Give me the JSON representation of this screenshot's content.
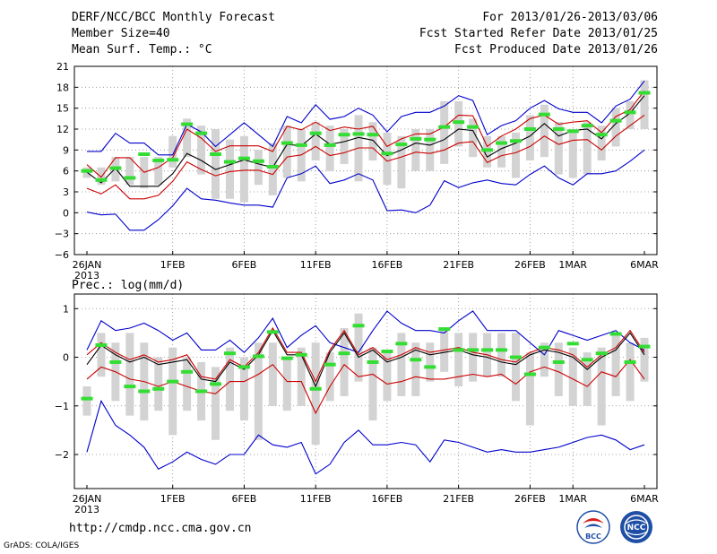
{
  "header": {
    "title": "DERF/NCC/BCC Monthly Forecast",
    "member_size": "Member Size=40",
    "variable": "Mean Surf. Temp.: °C",
    "period": "For 2013/01/26-2013/03/06",
    "start_date": "Fcst Started Refer Date 2013/01/25",
    "produced_date": "Fcst Produced Date 2013/01/26"
  },
  "footer": {
    "url": "http://cmdp.ncc.cma.gov.cn",
    "credit": "GrADS: COLA/IGES",
    "logo_bcc": "BCC",
    "logo_ncc": "NCC"
  },
  "colors": {
    "envelope": "#0000cc",
    "spread": "#cc0000",
    "mean": "#000000",
    "median": "#33dd33",
    "box": "#d3d3d3"
  },
  "chart_data": [
    {
      "type": "line",
      "title": "Mean Surf. Temp.: °C",
      "days": 40,
      "ylim": [
        -6,
        21
      ],
      "yticks": [
        -6,
        -3,
        0,
        3,
        6,
        9,
        12,
        15,
        18,
        21
      ],
      "xtick_labels": [
        {
          "day": 0,
          "label": "26JAN",
          "sub": "2013"
        },
        {
          "day": 6,
          "label": "1FEB"
        },
        {
          "day": 11,
          "label": "6FEB"
        },
        {
          "day": 16,
          "label": "11FEB"
        },
        {
          "day": 21,
          "label": "16FEB"
        },
        {
          "day": 26,
          "label": "21FEB"
        },
        {
          "day": 31,
          "label": "26FEB"
        },
        {
          "day": 34,
          "label": "1MAR"
        },
        {
          "day": 39,
          "label": "6MAR"
        }
      ],
      "series": [
        {
          "name": "max",
          "values": [
            8.8,
            8.8,
            11.4,
            10.0,
            10.0,
            8.3,
            8.3,
            12.7,
            11.6,
            9.5,
            11.2,
            12.9,
            11.2,
            9.5,
            13.8,
            12.9,
            15.5,
            13.4,
            13.8,
            15.0,
            14.0,
            11.6,
            13.8,
            14.4,
            14.4,
            15.3,
            16.8,
            16.1,
            11.2,
            12.5,
            13.2,
            15.0,
            16.1,
            14.9,
            14.4,
            14.4,
            12.9,
            15.3,
            16.3,
            18.9
          ]
        },
        {
          "name": "upper",
          "values": [
            6.9,
            5.1,
            7.9,
            7.9,
            5.8,
            6.5,
            7.9,
            12.0,
            10.7,
            8.8,
            9.6,
            9.6,
            9.6,
            8.8,
            12.4,
            11.9,
            13.0,
            11.8,
            12.3,
            12.0,
            12.4,
            9.5,
            10.6,
            11.3,
            11.3,
            12.3,
            14.0,
            13.9,
            9.5,
            11.0,
            12.0,
            13.5,
            14.0,
            12.7,
            13.0,
            13.2,
            11.5,
            13.8,
            14.8,
            17.5
          ]
        },
        {
          "name": "mean",
          "values": [
            5.8,
            4.3,
            6.4,
            3.8,
            3.8,
            3.8,
            5.6,
            8.5,
            7.5,
            6.2,
            6.9,
            7.6,
            7.0,
            6.5,
            9.8,
            9.6,
            11.3,
            9.8,
            10.2,
            10.8,
            10.4,
            8.2,
            9.0,
            10.0,
            9.7,
            10.5,
            12.0,
            11.8,
            8.0,
            9.2,
            10.0,
            11.0,
            12.8,
            11.0,
            11.8,
            12.0,
            10.6,
            12.8,
            14.3,
            16.8
          ]
        },
        {
          "name": "lower",
          "values": [
            3.5,
            2.7,
            4.0,
            2.0,
            2.0,
            2.5,
            4.5,
            7.3,
            6.2,
            5.3,
            5.9,
            6.1,
            6.1,
            5.5,
            8.0,
            8.3,
            9.5,
            8.2,
            8.6,
            9.3,
            9.3,
            7.4,
            8.0,
            8.7,
            8.5,
            9.0,
            10.0,
            10.2,
            7.2,
            8.2,
            8.6,
            9.5,
            11.0,
            9.8,
            10.4,
            10.5,
            9.0,
            11.0,
            12.5,
            14.0
          ]
        },
        {
          "name": "min",
          "values": [
            0.1,
            -0.3,
            -0.2,
            -2.5,
            -2.5,
            -1.0,
            1.0,
            3.5,
            2.0,
            1.8,
            1.4,
            1.1,
            1.1,
            0.8,
            5.0,
            5.6,
            6.7,
            4.2,
            4.7,
            5.6,
            4.7,
            0.3,
            0.4,
            0.0,
            1.1,
            4.6,
            3.6,
            4.3,
            4.7,
            4.2,
            4.0,
            5.5,
            6.7,
            5.0,
            4.0,
            5.6,
            5.6,
            6.0,
            7.4,
            9.0
          ]
        },
        {
          "name": "median",
          "values": [
            6.0,
            4.7,
            6.4,
            5.0,
            8.4,
            7.5,
            7.6,
            12.7,
            11.4,
            8.4,
            7.3,
            7.8,
            7.4,
            6.6,
            10.0,
            9.7,
            11.4,
            9.7,
            11.2,
            11.3,
            11.2,
            8.5,
            9.8,
            10.6,
            10.5,
            12.3,
            13.0,
            12.3,
            9.0,
            10.0,
            10.3,
            12.0,
            14.1,
            12.0,
            11.7,
            12.5,
            11.2,
            13.2,
            14.4,
            17.2
          ]
        },
        {
          "name": "box_top",
          "values": [
            6.5,
            6.5,
            8.0,
            8.0,
            8.0,
            8.0,
            11.0,
            13.5,
            12.5,
            12.0,
            10.5,
            11.0,
            9.0,
            10.0,
            12.5,
            12.0,
            13.0,
            12.5,
            12.0,
            14.0,
            13.0,
            11.5,
            11.0,
            12.0,
            12.0,
            16.0,
            16.0,
            13.5,
            11.0,
            11.0,
            11.5,
            14.0,
            15.5,
            13.0,
            12.0,
            13.0,
            12.5,
            15.0,
            16.0,
            19.0
          ]
        },
        {
          "name": "box_bottom",
          "values": [
            5.0,
            4.0,
            4.5,
            4.0,
            3.5,
            4.0,
            6.5,
            8.0,
            5.5,
            2.0,
            2.0,
            1.5,
            4.0,
            2.5,
            5.0,
            4.5,
            7.5,
            6.0,
            7.0,
            4.5,
            7.5,
            4.0,
            3.5,
            6.0,
            6.0,
            7.0,
            9.5,
            8.0,
            6.5,
            6.5,
            5.0,
            7.5,
            8.0,
            5.5,
            5.0,
            5.5,
            7.5,
            9.5,
            12.0,
            12.0
          ]
        }
      ]
    },
    {
      "type": "line",
      "title": "Prec.: log(mm/d)",
      "days": 40,
      "ylim": [
        -2.7,
        1.3
      ],
      "yticks": [
        -2,
        -1,
        0,
        1
      ],
      "xtick_labels": [
        {
          "day": 0,
          "label": "26JAN",
          "sub": "2013"
        },
        {
          "day": 6,
          "label": "1FEB"
        },
        {
          "day": 11,
          "label": "6FEB"
        },
        {
          "day": 16,
          "label": "11FEB"
        },
        {
          "day": 21,
          "label": "16FEB"
        },
        {
          "day": 26,
          "label": "21FEB"
        },
        {
          "day": 31,
          "label": "26FEB"
        },
        {
          "day": 34,
          "label": "1MAR"
        },
        {
          "day": 39,
          "label": "6MAR"
        }
      ],
      "series": [
        {
          "name": "max",
          "values": [
            0.15,
            0.75,
            0.55,
            0.6,
            0.7,
            0.55,
            0.35,
            0.5,
            0.15,
            0.15,
            0.35,
            0.1,
            0.4,
            0.8,
            0.2,
            0.45,
            0.65,
            0.3,
            0.2,
            0.1,
            0.55,
            0.95,
            0.7,
            0.55,
            0.55,
            0.5,
            0.75,
            0.95,
            0.55,
            0.55,
            0.55,
            0.3,
            0.05,
            0.55,
            0.45,
            0.35,
            0.45,
            0.55,
            0.3,
            0.15
          ]
        },
        {
          "name": "upper",
          "values": [
            0.05,
            0.3,
            0.1,
            -0.05,
            0.05,
            -0.1,
            -0.05,
            0.05,
            -0.4,
            -0.45,
            -0.05,
            -0.2,
            0.1,
            0.6,
            0.1,
            0.1,
            -0.5,
            0.15,
            0.55,
            0.05,
            0.2,
            -0.05,
            0.05,
            0.2,
            0.1,
            0.15,
            0.2,
            0.1,
            0.05,
            -0.05,
            -0.1,
            0.1,
            0.2,
            0.15,
            0.05,
            -0.2,
            0.05,
            0.2,
            0.55,
            0.1
          ]
        },
        {
          "name": "mean",
          "values": [
            -0.15,
            0.25,
            0.05,
            -0.1,
            0.0,
            -0.15,
            -0.1,
            -0.05,
            -0.45,
            -0.5,
            -0.1,
            -0.25,
            0.05,
            0.55,
            0.05,
            0.05,
            -0.6,
            0.1,
            0.5,
            0.0,
            0.15,
            -0.1,
            0.0,
            0.15,
            0.05,
            0.1,
            0.15,
            0.05,
            0.0,
            -0.1,
            -0.15,
            0.05,
            0.15,
            0.1,
            0.0,
            -0.25,
            0.0,
            0.15,
            0.5,
            0.05
          ]
        },
        {
          "name": "lower",
          "values": [
            -0.45,
            -0.2,
            -0.3,
            -0.45,
            -0.5,
            -0.6,
            -0.5,
            -0.6,
            -0.7,
            -0.75,
            -0.5,
            -0.5,
            -0.35,
            -0.15,
            -0.5,
            -0.5,
            -1.15,
            -0.6,
            -0.15,
            -0.4,
            -0.35,
            -0.55,
            -0.5,
            -0.4,
            -0.45,
            -0.45,
            -0.4,
            -0.35,
            -0.4,
            -0.35,
            -0.55,
            -0.3,
            -0.2,
            -0.3,
            -0.45,
            -0.6,
            -0.3,
            -0.4,
            -0.05,
            -0.45
          ]
        },
        {
          "name": "min",
          "values": [
            -1.95,
            -0.9,
            -1.4,
            -1.6,
            -1.85,
            -2.3,
            -2.15,
            -1.95,
            -2.1,
            -2.2,
            -2.0,
            -2.0,
            -1.6,
            -1.8,
            -1.85,
            -1.75,
            -2.4,
            -2.2,
            -1.75,
            -1.5,
            -1.8,
            -1.8,
            -1.75,
            -1.8,
            -2.15,
            -1.7,
            -1.75,
            -1.85,
            -1.95,
            -1.9,
            -1.95,
            -1.95,
            -1.9,
            -1.85,
            -1.75,
            -1.65,
            -1.6,
            -1.7,
            -1.9,
            -1.8
          ]
        },
        {
          "name": "median",
          "values": [
            -0.85,
            0.25,
            -0.1,
            -0.6,
            -0.7,
            -0.65,
            -0.5,
            -0.3,
            -0.7,
            -0.55,
            0.08,
            -0.2,
            0.02,
            0.52,
            -0.02,
            0.05,
            -0.65,
            -0.15,
            0.08,
            0.65,
            -0.1,
            0.12,
            0.28,
            -0.05,
            -0.2,
            0.58,
            0.15,
            0.15,
            0.15,
            0.15,
            0.0,
            -0.35,
            0.2,
            -0.1,
            0.28,
            -0.05,
            0.08,
            0.48,
            -0.1,
            0.22
          ]
        },
        {
          "name": "box_top",
          "values": [
            -0.6,
            0.5,
            0.3,
            0.5,
            0.3,
            0.0,
            0.2,
            0.0,
            -0.1,
            -0.2,
            0.2,
            0.0,
            0.3,
            0.3,
            0.0,
            0.2,
            0.3,
            0.1,
            0.6,
            0.9,
            0.2,
            0.1,
            0.5,
            0.3,
            0.3,
            0.6,
            0.5,
            0.5,
            0.5,
            0.5,
            0.5,
            0.1,
            0.3,
            0.3,
            0.2,
            0.1,
            0.2,
            0.5,
            0.3,
            0.4
          ]
        },
        {
          "name": "box_bottom",
          "values": [
            -1.2,
            -0.4,
            -0.9,
            -1.2,
            -1.3,
            -1.1,
            -1.6,
            -1.1,
            -1.3,
            -1.7,
            -1.1,
            -1.3,
            -1.7,
            -1.0,
            -1.1,
            -1.0,
            -1.8,
            -0.9,
            -0.8,
            -0.5,
            -1.3,
            -0.9,
            -0.8,
            -0.8,
            -0.5,
            -0.3,
            -0.6,
            -0.5,
            -0.4,
            -0.4,
            -0.9,
            -1.4,
            -0.4,
            -0.8,
            -1.0,
            -1.0,
            -1.4,
            -0.8,
            -0.9,
            -0.5
          ]
        }
      ]
    }
  ]
}
